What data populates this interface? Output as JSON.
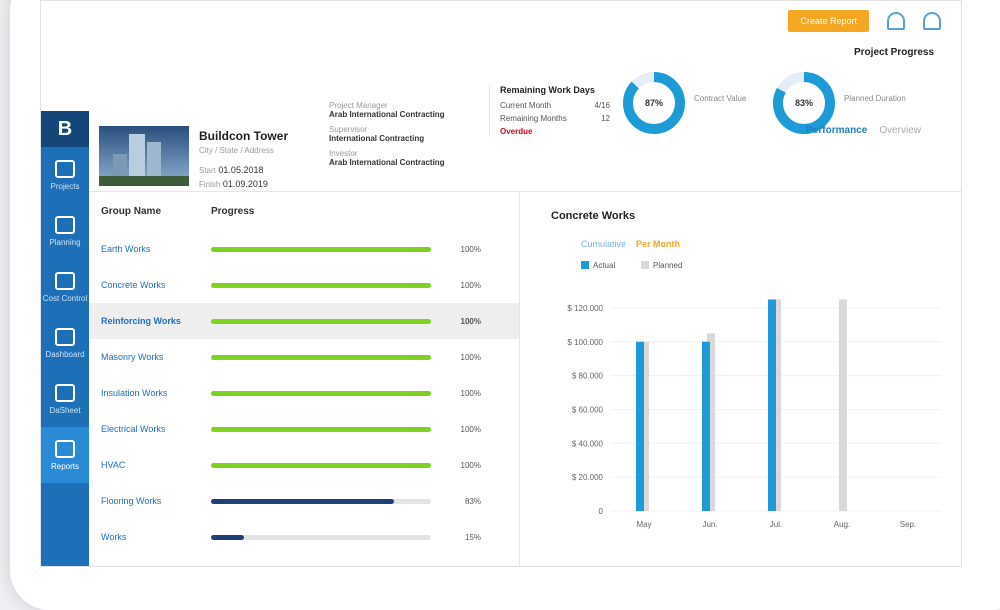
{
  "header": {
    "button": "Create Report"
  },
  "sidebar": {
    "logo": "B",
    "items": [
      "Projects",
      "Planning",
      "Cost Control",
      "Dashboard",
      "DaSheet",
      "Reports"
    ]
  },
  "project": {
    "name": "Buildcon Tower",
    "address": "City / State / Address",
    "start_label": "Start",
    "start": "01.05.2018",
    "finish_label": "Finish",
    "finish": "01.09.2019"
  },
  "roles": [
    {
      "role": "Project Manager",
      "name": "Arab International Contracting"
    },
    {
      "role": "Supervisor",
      "name": "International Contracting"
    },
    {
      "role": "Investor",
      "name": "Arab International Contracting"
    }
  ],
  "remaining": {
    "title": "Remaining Work Days",
    "rows": [
      {
        "label": "Current Month",
        "value": "4/16"
      },
      {
        "label": "Remaining Months",
        "value": "12"
      }
    ],
    "overdue": "Overdue"
  },
  "progress": {
    "title": "Project Progress",
    "donuts": [
      {
        "value": 87,
        "label": "87%",
        "caption": "Contract Value"
      },
      {
        "value": 83,
        "label": "83%",
        "caption": "Planned Duration"
      }
    ]
  },
  "tabs": [
    "Performance",
    "Overview"
  ],
  "groups": {
    "header_name": "Group Name",
    "header_progress": "Progress",
    "rows": [
      {
        "name": "Earth Works",
        "value": 100,
        "label": "100%"
      },
      {
        "name": "Concrete Works",
        "value": 100,
        "label": "100%"
      },
      {
        "name": "Reinforcing Works",
        "value": 100,
        "label": "100%"
      },
      {
        "name": "Masonry Works",
        "value": 100,
        "label": "100%"
      },
      {
        "name": "Insulation Works",
        "value": 100,
        "label": "100%"
      },
      {
        "name": "Electrical Works",
        "value": 100,
        "label": "100%"
      },
      {
        "name": "HVAC",
        "value": 100,
        "label": "100%"
      },
      {
        "name": "Flooring Works",
        "value": 83,
        "label": "83%"
      },
      {
        "name": "Works",
        "value": 15,
        "label": "15%"
      }
    ],
    "selected": 2
  },
  "chart_data": {
    "type": "bar",
    "title": "Concrete Works",
    "toggles": [
      "Cumulative",
      "Per Month"
    ],
    "categories": [
      "May",
      "Jun.",
      "Jul.",
      "Aug.",
      "Sep."
    ],
    "series": [
      {
        "name": "Actual",
        "color": "#1e9ad6",
        "values": [
          100000,
          100000,
          125000,
          null,
          null
        ]
      },
      {
        "name": "Planned",
        "color": "#d9d9d9",
        "values": [
          100000,
          105000,
          125000,
          125000,
          null
        ]
      }
    ],
    "ylim": [
      0,
      130000
    ],
    "yticks": [
      0,
      {
        "value": 20000,
        "label": "$ 20.000"
      },
      {
        "value": 40000,
        "label": "$ 40.000"
      },
      {
        "value": 60000,
        "label": "$ 60.000"
      },
      {
        "value": 80000,
        "label": "$ 80.000"
      },
      {
        "value": 100000,
        "label": "$ 100.000"
      },
      {
        "value": 120000,
        "label": "$ 120.000"
      }
    ]
  }
}
